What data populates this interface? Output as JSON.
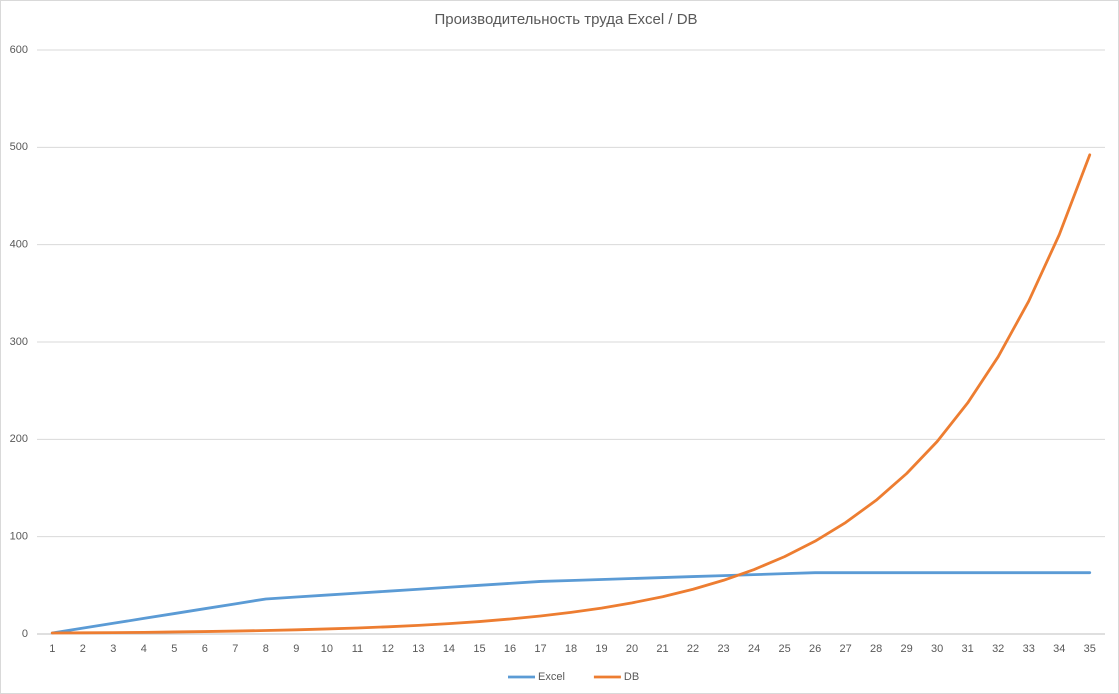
{
  "chart_data": {
    "type": "line",
    "title": "Производительность труда Excel / DB",
    "categories": [
      "1",
      "2",
      "3",
      "4",
      "5",
      "6",
      "7",
      "8",
      "9",
      "10",
      "11",
      "12",
      "13",
      "14",
      "15",
      "16",
      "17",
      "18",
      "19",
      "20",
      "21",
      "22",
      "23",
      "24",
      "25",
      "26",
      "27",
      "28",
      "29",
      "30",
      "31",
      "32",
      "33",
      "34",
      "35"
    ],
    "series": [
      {
        "name": "Excel",
        "color": "#5b9bd5",
        "values": [
          1,
          6,
          11,
          16,
          21,
          26,
          31,
          36,
          38,
          40,
          42,
          44,
          46,
          48,
          50,
          52,
          54,
          55,
          56,
          57,
          58,
          59,
          60,
          61,
          62,
          63,
          63,
          63,
          63,
          63,
          63,
          63,
          63,
          63,
          63
        ]
      },
      {
        "name": "DB",
        "color": "#ed7d31",
        "values": [
          1,
          1.2,
          1.4,
          1.7,
          2.1,
          2.5,
          3,
          3.6,
          4.3,
          5.2,
          6.2,
          7.4,
          8.9,
          10.7,
          12.8,
          15.4,
          18.5,
          22.2,
          26.6,
          32,
          38.3,
          46,
          55.2,
          66.2,
          79.5,
          95.4,
          114.5,
          137.4,
          164.9,
          197.8,
          237.4,
          284.9,
          341.9,
          410.2,
          492.3
        ]
      }
    ],
    "ylim": [
      0,
      600
    ],
    "yticks": [
      0,
      100,
      200,
      300,
      400,
      500,
      600
    ],
    "grid": true,
    "legend": "bottom"
  }
}
